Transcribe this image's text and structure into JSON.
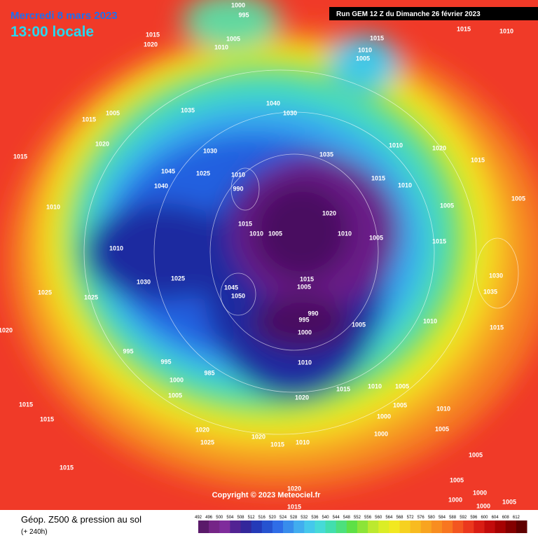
{
  "header": {
    "date": "Mercredi 8 mars 2023",
    "time": "13:00 locale",
    "run": "Run GEM 12 Z du Dimanche 26 février 2023"
  },
  "copyright": "Copyright © 2023 Meteociel.fr",
  "legend": {
    "title": "Géop. Z500 & pression au sol",
    "subtitle": "(+ 240h)",
    "scale": [
      492,
      496,
      500,
      504,
      508,
      512,
      516,
      520,
      524,
      528,
      532,
      536,
      540,
      544,
      548,
      552,
      556,
      560,
      564,
      568,
      572,
      576,
      580,
      584,
      588,
      592,
      596,
      600,
      604,
      608,
      612
    ]
  },
  "pressure_labels": [
    1000,
    995,
    1015,
    1020,
    1005,
    1010,
    1015,
    1015,
    1010,
    1010,
    1005,
    1035,
    1005,
    1015,
    1040,
    1030,
    1020,
    1030,
    1035,
    1010,
    1020,
    1015,
    1045,
    1025,
    1040,
    1010,
    990,
    1015,
    1010,
    1005,
    1005,
    1015,
    1010,
    1015,
    1005,
    1010,
    1020,
    1010,
    1005,
    1015,
    1010,
    1025,
    1030,
    1015,
    1005,
    1045,
    1050,
    990,
    995,
    1000,
    1005,
    1010,
    1025,
    1025,
    1020,
    995,
    995,
    985,
    1000,
    1005,
    1010,
    1015,
    1010,
    1020,
    1005,
    1005,
    1000,
    1000,
    1015,
    1015,
    1020,
    1025,
    1020,
    1015,
    1010,
    1015,
    1005,
    1005,
    1000,
    1000,
    1000,
    1005,
    1015,
    1035,
    1030,
    1010,
    1005,
    1015,
    1020
  ]
}
